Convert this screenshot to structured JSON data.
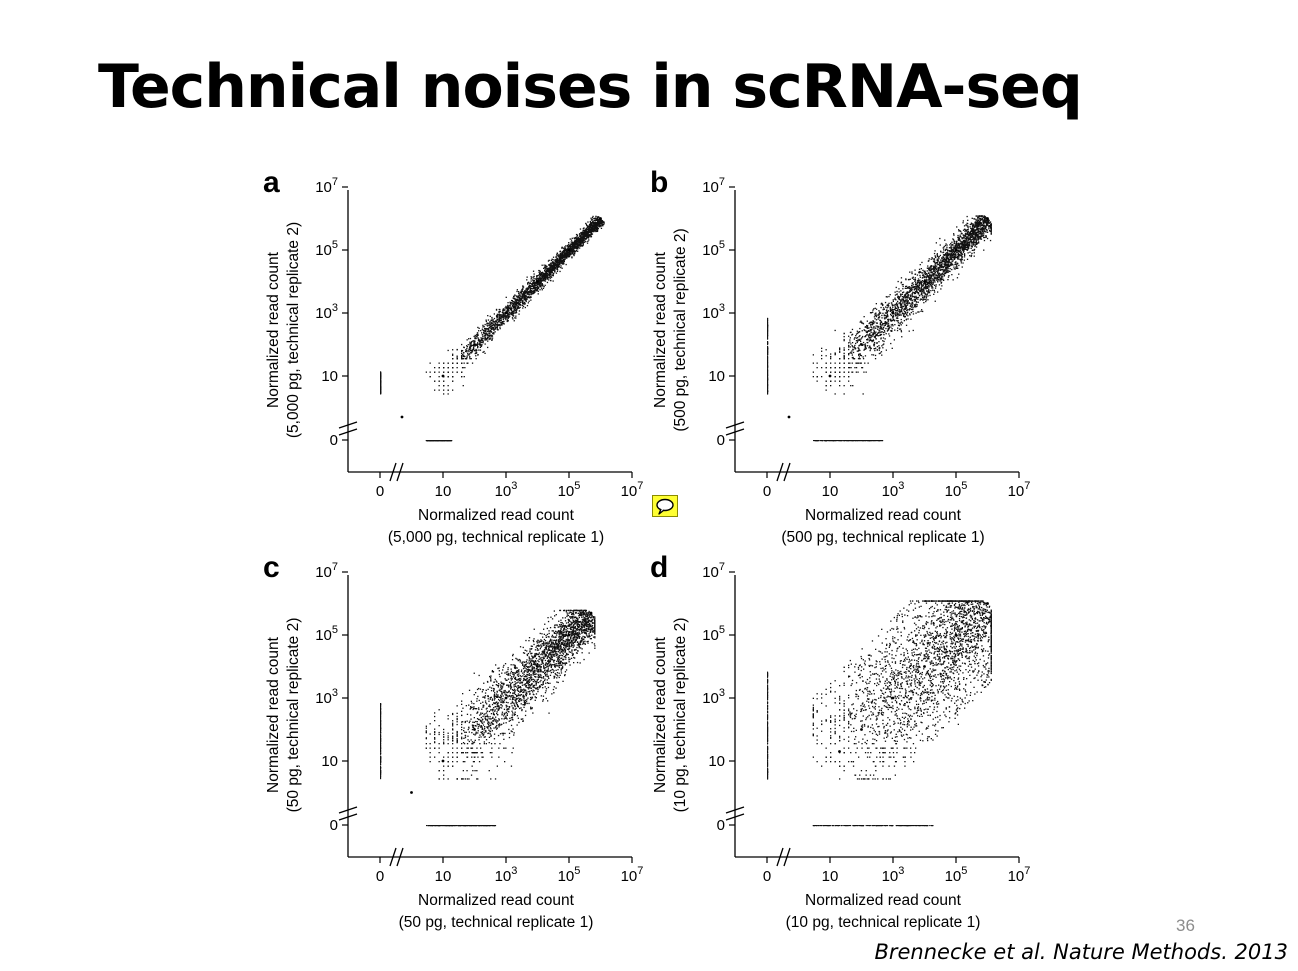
{
  "slide": {
    "title": "Technical noises in scRNA-seq",
    "slide_number": "36",
    "citation": "Brennecke et al. Nature Methods. 2013"
  },
  "icons": {
    "comment": "speech-bubble-icon"
  },
  "chart_data": [
    {
      "type": "scatter",
      "panel_label": "a",
      "xlabel": "Normalized read count",
      "xlabel_detail": "(5,000 pg, technical replicate 1)",
      "ylabel": "Normalized read count",
      "ylabel_detail": "(5,000 pg, technical replicate 2)",
      "log_scale": true,
      "axis_break": true,
      "xlim": [
        0,
        10000000
      ],
      "ylim": [
        0,
        10000000
      ],
      "x_ticks": [
        "0",
        "10",
        "10^3",
        "10^5",
        "10^7"
      ],
      "y_ticks": [
        "0",
        "10",
        "10^3",
        "10^5",
        "10^7"
      ],
      "noise_spread": 0.3,
      "max_count": 1000000,
      "points": [
        [
          0.5,
          0.5
        ],
        [
          10,
          10
        ],
        [
          100,
          100
        ],
        [
          1000,
          1000
        ],
        [
          10000,
          10000
        ],
        [
          100000,
          100000
        ],
        [
          1000000,
          1000000
        ]
      ]
    },
    {
      "type": "scatter",
      "panel_label": "b",
      "xlabel": "Normalized read count",
      "xlabel_detail": "(500 pg, technical replicate 1)",
      "ylabel": "Normalized read count",
      "ylabel_detail": "(500 pg, technical replicate 2)",
      "log_scale": true,
      "axis_break": true,
      "xlim": [
        0,
        10000000
      ],
      "ylim": [
        0,
        10000000
      ],
      "x_ticks": [
        "0",
        "10",
        "10^3",
        "10^5",
        "10^7"
      ],
      "y_ticks": [
        "0",
        "10",
        "10^3",
        "10^5",
        "10^7"
      ],
      "noise_spread": 0.6,
      "max_count": 1000000,
      "points": [
        [
          0.5,
          0.5
        ],
        [
          10,
          10
        ],
        [
          100,
          100
        ],
        [
          1000,
          1000
        ],
        [
          10000,
          10000
        ],
        [
          100000,
          100000
        ],
        [
          1000000,
          1000000
        ]
      ]
    },
    {
      "type": "scatter",
      "panel_label": "c",
      "xlabel": "Normalized read count",
      "xlabel_detail": "(50 pg, technical replicate 1)",
      "ylabel": "Normalized read count",
      "ylabel_detail": "(50 pg, technical replicate 2)",
      "log_scale": true,
      "axis_break": true,
      "xlim": [
        0,
        10000000
      ],
      "ylim": [
        0,
        10000000
      ],
      "x_ticks": [
        "0",
        "10",
        "10^3",
        "10^5",
        "10^7"
      ],
      "y_ticks": [
        "0",
        "10",
        "10^3",
        "10^5",
        "10^7"
      ],
      "noise_spread": 1.0,
      "max_count": 500000,
      "points": [
        [
          1,
          1
        ],
        [
          10,
          10
        ],
        [
          100,
          100
        ],
        [
          1000,
          1000
        ],
        [
          10000,
          10000
        ],
        [
          100000,
          100000
        ],
        [
          500000,
          500000
        ]
      ]
    },
    {
      "type": "scatter",
      "panel_label": "d",
      "xlabel": "Normalized read count",
      "xlabel_detail": "(10 pg, technical replicate 1)",
      "ylabel": "Normalized read count",
      "ylabel_detail": "(10 pg, technical replicate 2)",
      "log_scale": true,
      "axis_break": true,
      "xlim": [
        0,
        10000000
      ],
      "ylim": [
        0,
        10000000
      ],
      "x_ticks": [
        "0",
        "10",
        "10^3",
        "10^5",
        "10^7"
      ],
      "y_ticks": [
        "0",
        "10",
        "10^3",
        "10^5",
        "10^7"
      ],
      "noise_spread": 1.6,
      "max_count": 1000000,
      "points": [
        [
          20,
          20
        ],
        [
          100,
          100
        ],
        [
          1000,
          1000
        ],
        [
          10000,
          10000
        ],
        [
          100000,
          100000
        ],
        [
          1000000,
          1000000
        ]
      ]
    }
  ]
}
